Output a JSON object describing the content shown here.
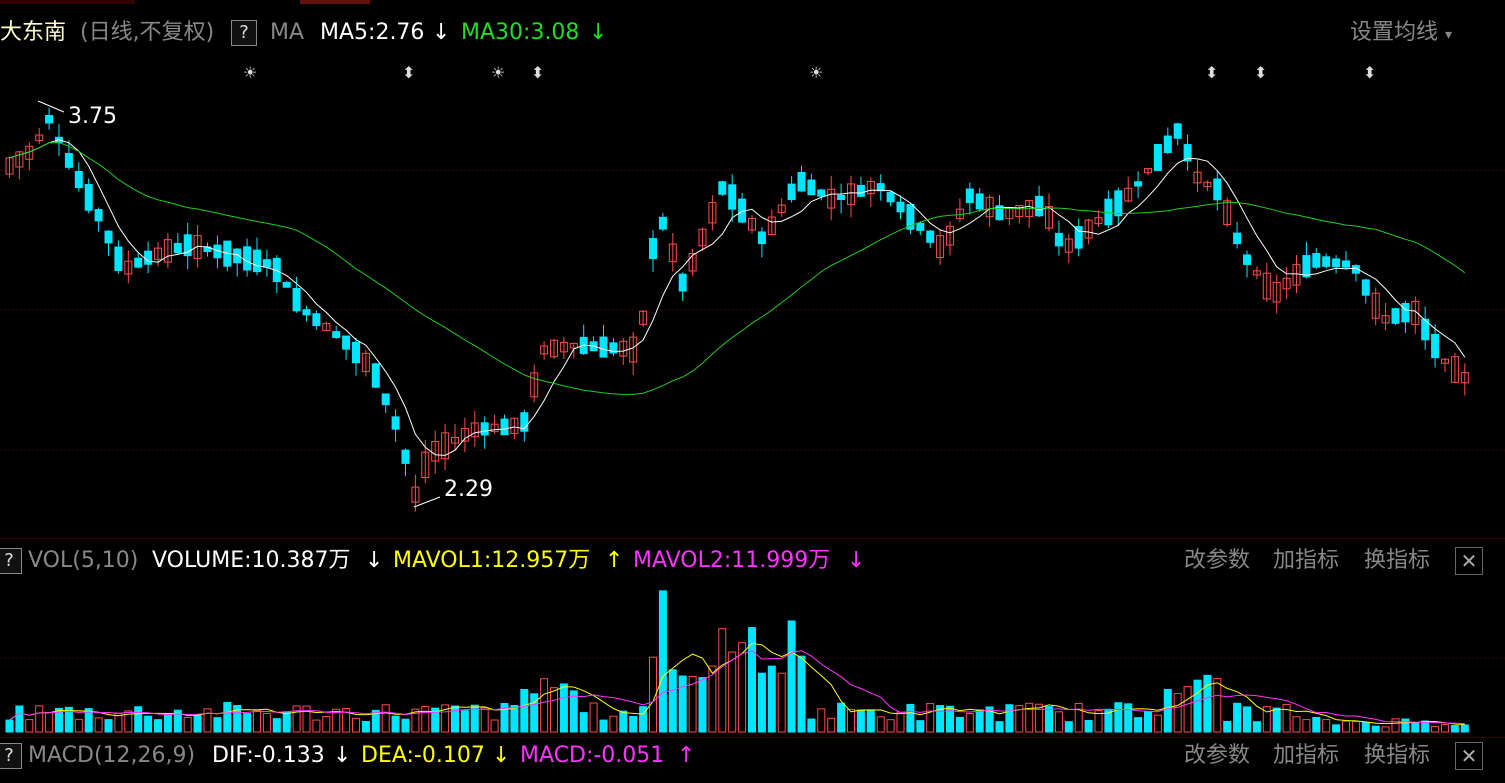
{
  "header": {
    "stock_name": "大东南",
    "mode": "(日线,不复权)",
    "help": "?",
    "indicator": "MA",
    "ma5": "MA5:2.76",
    "ma5_arrow": "↓",
    "ma30": "MA30:3.08",
    "ma30_arrow": "↓",
    "settings": "设置均线",
    "settings_caret": "▾"
  },
  "price_chart": {
    "high_label": "3.75",
    "low_label": "2.29",
    "colors": {
      "up": "#ff4c4c",
      "down": "#00e5ff",
      "ma5": "#ffffff",
      "ma30": "#22cc22",
      "grid": "#3a0000"
    },
    "marker_icons": [
      "sun",
      "updown",
      "sun",
      "updown",
      "sun",
      "updown",
      "updown",
      "updown"
    ]
  },
  "volume_panel": {
    "help": "?",
    "name": "VOL(5,10)",
    "volume": "VOLUME:10.387万",
    "volume_arrow": "↓",
    "mavol1": "MAVOL1:12.957万",
    "mavol1_arrow": "↑",
    "mavol2": "MAVOL2:11.999万",
    "mavol2_arrow": "↓",
    "btn_params": "改参数",
    "btn_add": "加指标",
    "btn_switch": "换指标",
    "close": "✕",
    "colors": {
      "mavol1": "#ffff00",
      "mavol2": "#ff33ff"
    }
  },
  "macd_panel": {
    "help": "?",
    "name": "MACD(12,26,9)",
    "dif": "DIF:-0.133",
    "dif_arrow": "↓",
    "dea": "DEA:-0.107",
    "dea_arrow": "↓",
    "macd": "MACD:-0.051",
    "macd_arrow": "↑",
    "btn_params": "改参数",
    "btn_add": "加指标",
    "btn_switch": "换指标",
    "close": "✕"
  }
}
